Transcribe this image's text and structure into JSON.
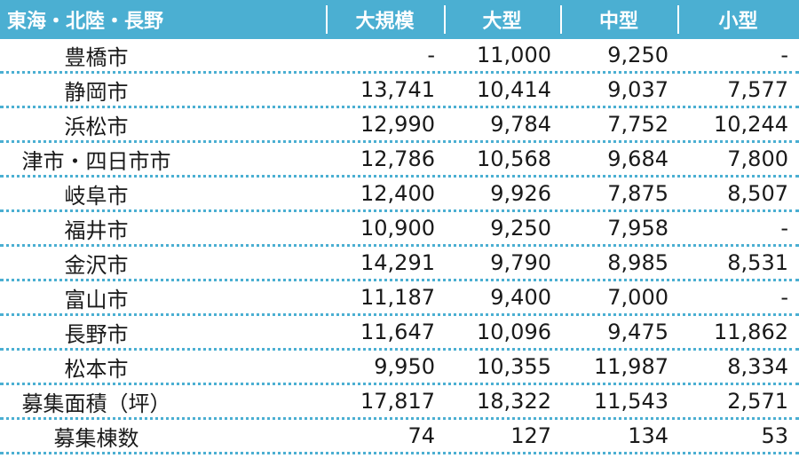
{
  "table": {
    "headers": [
      "東海・北陸・長野",
      "大規模",
      "大型",
      "中型",
      "小型"
    ],
    "rows": [
      {
        "label": "豊橋市",
        "values": [
          "-",
          "11,000",
          "9,250",
          "-"
        ]
      },
      {
        "label": "静岡市",
        "values": [
          "13,741",
          "10,414",
          "9,037",
          "7,577"
        ]
      },
      {
        "label": "浜松市",
        "values": [
          "12,990",
          "9,784",
          "7,752",
          "10,244"
        ]
      },
      {
        "label": "津市・四日市市",
        "values": [
          "12,786",
          "10,568",
          "9,684",
          "7,800"
        ]
      },
      {
        "label": "岐阜市",
        "values": [
          "12,400",
          "9,926",
          "7,875",
          "8,507"
        ]
      },
      {
        "label": "福井市",
        "values": [
          "10,900",
          "9,250",
          "7,958",
          "-"
        ]
      },
      {
        "label": "金沢市",
        "values": [
          "14,291",
          "9,790",
          "8,985",
          "8,531"
        ]
      },
      {
        "label": "富山市",
        "values": [
          "11,187",
          "9,400",
          "7,000",
          "-"
        ]
      },
      {
        "label": "長野市",
        "values": [
          "11,647",
          "10,096",
          "9,475",
          "11,862"
        ]
      },
      {
        "label": "松本市",
        "values": [
          "9,950",
          "10,355",
          "11,987",
          "8,334"
        ]
      },
      {
        "label": "募集面積（坪）",
        "values": [
          "17,817",
          "18,322",
          "11,543",
          "2,571"
        ]
      },
      {
        "label": "募集棟数",
        "values": [
          "74",
          "127",
          "134",
          "53"
        ]
      }
    ]
  },
  "colors": {
    "header_bg": "#4bafd2",
    "header_text": "#ffffff",
    "divider": "#4bafd2"
  }
}
